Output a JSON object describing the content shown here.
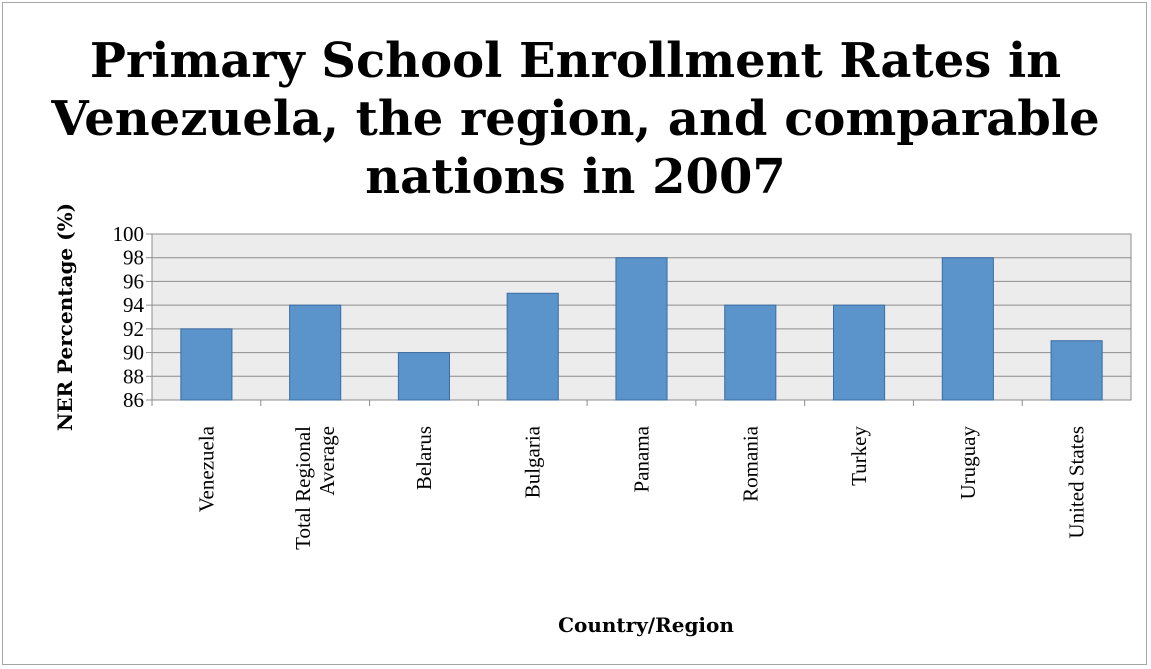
{
  "chart_data": {
    "type": "bar",
    "title_lines": [
      "Primary School Enrollment Rates in",
      "Venezuela, the region, and comparable",
      "nations in 2007"
    ],
    "xlabel": "Country/Region",
    "ylabel": "NER Percentage (%)",
    "categories": [
      [
        "Venezuela"
      ],
      [
        "Total Regional",
        "Average"
      ],
      [
        "Belarus"
      ],
      [
        "Bulgaria"
      ],
      [
        "Panama"
      ],
      [
        "Romania"
      ],
      [
        "Turkey"
      ],
      [
        "Uruguay"
      ],
      [
        "United States"
      ]
    ],
    "values": [
      92,
      94,
      90,
      95,
      98,
      94,
      94,
      98,
      91
    ],
    "ylim": [
      86,
      100
    ],
    "yticks": [
      86,
      88,
      90,
      92,
      94,
      96,
      98,
      100
    ],
    "grid": true,
    "legend": "none",
    "colors": {
      "bar": "#5b93cb",
      "bar_stroke": "#3a6ea5",
      "plot_bg": "#ececec",
      "grid": "#8c8c8c"
    }
  }
}
